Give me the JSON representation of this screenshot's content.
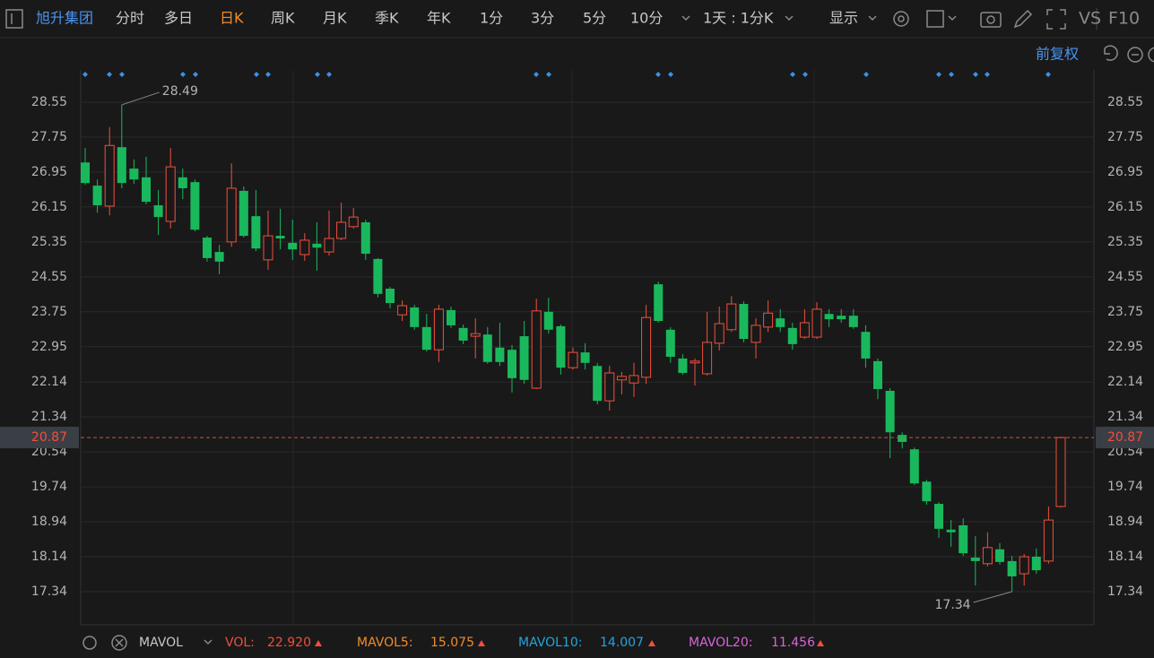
{
  "toolbar": {
    "stock": "旭升集团",
    "periods": [
      "分时",
      "多日",
      "日K",
      "周K",
      "月K",
      "季K",
      "年K",
      "1分",
      "3分",
      "5分",
      "10分"
    ],
    "interval": "1天 : 1分K",
    "display": "显示",
    "vs": "VS",
    "f10": "F10",
    "adjust": "前复权"
  },
  "chart_data": {
    "type": "candlestick",
    "up_color": "#f0503c",
    "down_color": "#1ab85c",
    "grid": true,
    "ylim": [
      16.58,
      29.29
    ],
    "yticks": [
      28.55,
      27.75,
      26.95,
      26.15,
      25.35,
      24.55,
      23.75,
      22.95,
      22.14,
      21.34,
      20.54,
      19.74,
      18.94,
      18.14,
      17.34
    ],
    "open": [
      27.17,
      26.64,
      26.17,
      27.52,
      27.03,
      26.83,
      26.19,
      25.82,
      26.83,
      26.72,
      25.45,
      25.12,
      25.35,
      26.52,
      25.94,
      24.94,
      25.49,
      25.33,
      25.06,
      25.31,
      25.12,
      25.43,
      25.7,
      25.8,
      24.96,
      24.28,
      23.68,
      23.85,
      23.4,
      22.88,
      23.79,
      23.38,
      23.19,
      23.23,
      22.93,
      22.88,
      23.19,
      22.0,
      23.75,
      23.42,
      22.47,
      22.82,
      22.51,
      21.71,
      22.19,
      22.12,
      22.25,
      24.38,
      23.34,
      22.68,
      22.58,
      22.33,
      23.03,
      23.34,
      23.93,
      23.05,
      23.4,
      23.6,
      23.38,
      23.17,
      23.17,
      23.7,
      23.66,
      23.66,
      23.29,
      22.62,
      21.94,
      20.93,
      20.6,
      19.86,
      19.35,
      18.76,
      18.86,
      18.12,
      17.98,
      18.31,
      18.04,
      17.75,
      18.14,
      18.04,
      19.29
    ],
    "high": [
      27.5,
      26.78,
      27.98,
      28.49,
      27.24,
      27.3,
      26.54,
      27.5,
      27.03,
      26.78,
      25.49,
      25.28,
      27.15,
      26.62,
      26.54,
      26.07,
      26.11,
      25.86,
      25.55,
      25.8,
      26.07,
      26.25,
      26.13,
      25.86,
      24.98,
      24.32,
      24.01,
      23.91,
      23.7,
      23.91,
      23.87,
      23.46,
      23.6,
      23.4,
      23.5,
      22.99,
      23.54,
      24.05,
      24.07,
      23.46,
      22.93,
      23.03,
      22.58,
      22.51,
      22.37,
      22.58,
      23.91,
      24.44,
      23.4,
      22.78,
      22.68,
      23.75,
      23.87,
      24.11,
      23.99,
      23.6,
      24.01,
      23.81,
      23.5,
      23.81,
      23.97,
      23.81,
      23.81,
      23.81,
      23.44,
      22.68,
      22.0,
      20.99,
      20.64,
      19.9,
      19.39,
      18.98,
      19.02,
      18.61,
      18.7,
      18.45,
      18.16,
      18.2,
      18.33,
      19.29,
      20.89
    ],
    "low": [
      26.66,
      26.02,
      25.96,
      26.58,
      26.68,
      26.21,
      25.51,
      25.66,
      26.33,
      25.59,
      24.9,
      24.61,
      25.24,
      25.45,
      25.14,
      24.71,
      25.18,
      24.94,
      24.92,
      24.69,
      25.04,
      25.39,
      25.66,
      24.94,
      24.08,
      23.83,
      23.54,
      23.34,
      22.84,
      22.6,
      23.38,
      23.01,
      22.68,
      22.56,
      22.51,
      21.9,
      22.1,
      21.98,
      23.25,
      22.31,
      22.43,
      22.43,
      21.63,
      21.49,
      21.86,
      21.8,
      22.1,
      23.5,
      22.58,
      22.31,
      22.06,
      22.29,
      22.86,
      23.29,
      23.05,
      22.68,
      23.29,
      23.29,
      22.88,
      23.13,
      23.13,
      23.4,
      23.5,
      23.36,
      22.47,
      21.75,
      20.4,
      20.62,
      19.78,
      19.33,
      18.57,
      18.37,
      18.16,
      17.48,
      17.92,
      17.96,
      17.34,
      17.48,
      17.75,
      17.98,
      19.27
    ],
    "close": [
      26.7,
      26.19,
      27.56,
      26.7,
      26.78,
      26.27,
      25.92,
      27.07,
      26.58,
      25.63,
      24.98,
      24.9,
      26.58,
      25.49,
      25.2,
      25.49,
      25.43,
      25.18,
      25.39,
      25.22,
      25.43,
      25.8,
      25.92,
      25.08,
      24.16,
      23.95,
      23.89,
      23.4,
      22.88,
      23.81,
      23.44,
      23.09,
      23.25,
      22.6,
      22.6,
      22.23,
      22.19,
      23.77,
      23.34,
      22.47,
      22.82,
      22.58,
      21.71,
      22.35,
      22.27,
      22.29,
      23.62,
      23.54,
      22.72,
      22.35,
      22.62,
      23.05,
      23.48,
      23.93,
      23.13,
      23.44,
      23.72,
      23.4,
      23.01,
      23.5,
      23.81,
      23.58,
      23.58,
      23.4,
      22.68,
      21.98,
      20.99,
      20.77,
      19.82,
      19.41,
      18.78,
      18.7,
      18.22,
      18.04,
      18.35,
      18.02,
      17.69,
      18.14,
      17.83,
      18.98,
      20.87
    ]
  },
  "indicator_bar": {
    "name": "MAVOL",
    "items": [
      {
        "label": "VOL:",
        "value": "22.920",
        "color": "#f0503c"
      },
      {
        "label": "MAVOL5:",
        "value": "15.075",
        "color": "#f08c2a"
      },
      {
        "label": "MAVOL10:",
        "value": "14.007",
        "color": "#22a6de"
      },
      {
        "label": "MAVOL20:",
        "value": "11.456",
        "color": "#d865d8"
      }
    ]
  }
}
